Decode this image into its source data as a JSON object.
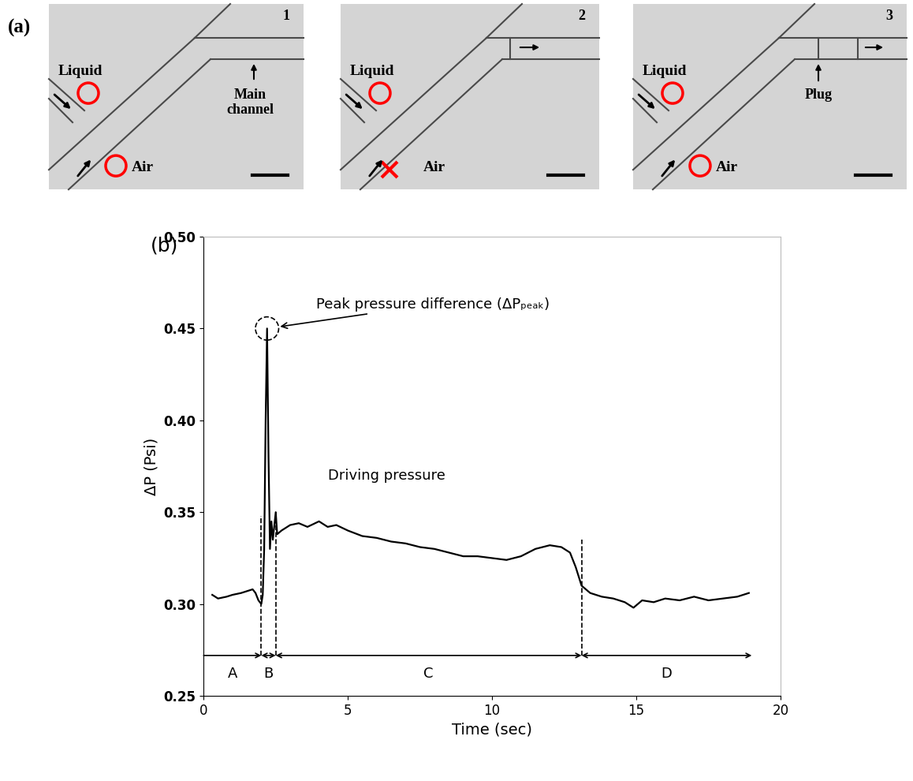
{
  "panel_a": {
    "label": "(a)",
    "panels": [
      {
        "number": "1",
        "liquid": "Liquid",
        "air": "Air",
        "main_channel": "Main\nchannel"
      },
      {
        "number": "2",
        "liquid": "Liquid",
        "air": "Air"
      },
      {
        "number": "3",
        "liquid": "Liquid",
        "air": "Air",
        "plug": "Plug"
      }
    ]
  },
  "chart_data": {
    "type": "line",
    "title": "(b)",
    "x_label": "Time (sec)",
    "y_label": "ΔP (Psi)",
    "color": "#000000",
    "x": [
      0.3,
      0.5,
      0.8,
      1.0,
      1.3,
      1.5,
      1.7,
      1.8,
      1.9,
      2.0,
      2.05,
      2.1,
      2.15,
      2.2,
      2.25,
      2.3,
      2.35,
      2.4,
      2.5,
      2.55,
      2.7,
      3.0,
      3.3,
      3.6,
      4.0,
      4.3,
      4.6,
      5.0,
      5.5,
      6.0,
      6.5,
      7.0,
      7.5,
      8.0,
      8.5,
      9.0,
      9.5,
      10.0,
      10.5,
      11.0,
      11.5,
      12.0,
      12.4,
      12.7,
      12.9,
      13.1,
      13.4,
      13.8,
      14.2,
      14.6,
      14.9,
      15.2,
      15.6,
      16.0,
      16.5,
      17.0,
      17.5,
      18.0,
      18.5,
      18.9
    ],
    "values": [
      0.305,
      0.303,
      0.304,
      0.305,
      0.306,
      0.307,
      0.308,
      0.306,
      0.302,
      0.3,
      0.305,
      0.33,
      0.4,
      0.45,
      0.38,
      0.33,
      0.345,
      0.335,
      0.35,
      0.338,
      0.34,
      0.343,
      0.344,
      0.342,
      0.345,
      0.342,
      0.343,
      0.34,
      0.337,
      0.336,
      0.334,
      0.333,
      0.331,
      0.33,
      0.328,
      0.326,
      0.326,
      0.325,
      0.324,
      0.326,
      0.33,
      0.332,
      0.331,
      0.328,
      0.32,
      0.31,
      0.306,
      0.304,
      0.303,
      0.301,
      0.298,
      0.302,
      0.301,
      0.303,
      0.302,
      0.304,
      0.302,
      0.303,
      0.304,
      0.306
    ],
    "xlim": [
      0,
      20
    ],
    "xticks": [
      0,
      5,
      10,
      15,
      20
    ],
    "ylim": [
      0.25,
      0.5
    ],
    "yticks": [
      0.25,
      {
        "value": 0.3,
        "label": "0.30"
      },
      0.35,
      {
        "value": 0.4,
        "label": "0.40"
      },
      0.45,
      {
        "value": 0.5,
        "label": "0.50"
      }
    ],
    "annotations": [
      {
        "text": "Peak pressure difference (ΔPₚₑₐₖ)",
        "x": 2.2,
        "y": 0.45
      },
      {
        "text": "Driving pressure",
        "x": 4.3,
        "y": 0.37
      }
    ],
    "boundaries": [
      {
        "x": 2.0,
        "bottom": 0.272,
        "top": 0.348
      },
      {
        "x": 2.5,
        "bottom": 0.272,
        "top": 0.35
      },
      {
        "x": 13.1,
        "bottom": 0.272,
        "top": 0.335
      }
    ],
    "regions": [
      {
        "label": "A",
        "start": 0,
        "end": 2.0,
        "y": 0.272
      },
      {
        "label": "B",
        "start": 2.0,
        "end": 2.5,
        "y": 0.272
      },
      {
        "label": "C",
        "start": 2.5,
        "end": 13.1,
        "y": 0.272
      },
      {
        "label": "D",
        "start": 13.1,
        "end": 19,
        "y": 0.272
      }
    ]
  }
}
